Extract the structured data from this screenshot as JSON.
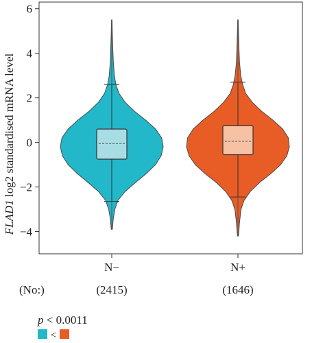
{
  "chart_data": {
    "type": "violin",
    "ylabel_italic": "FLAD1",
    "ylabel_rest": " log2 standardised mRNA level",
    "ylim": [
      -5,
      6.3
    ],
    "yticks": [
      -4,
      -2,
      0,
      2,
      4,
      6
    ],
    "ytick_labels": [
      "−4",
      "−2",
      "0",
      "2",
      "4",
      "6"
    ],
    "count_prefix": "(No:)",
    "groups": [
      {
        "label": "N−",
        "count_label": "(2415)",
        "color": "#22B7C9",
        "box_color": "#A9DDE6",
        "min": -3.9,
        "whisker_low": -2.65,
        "q1": -0.75,
        "median": -0.05,
        "q3": 0.6,
        "whisker_high": 2.6,
        "max": 5.5,
        "density": [
          [
            -3.9,
            0.01
          ],
          [
            -3.4,
            0.03
          ],
          [
            -3.0,
            0.06
          ],
          [
            -2.6,
            0.12
          ],
          [
            -2.2,
            0.26
          ],
          [
            -1.8,
            0.46
          ],
          [
            -1.4,
            0.67
          ],
          [
            -1.0,
            0.85
          ],
          [
            -0.6,
            0.96
          ],
          [
            -0.2,
            1.0
          ],
          [
            0.2,
            0.97
          ],
          [
            0.6,
            0.85
          ],
          [
            1.0,
            0.66
          ],
          [
            1.4,
            0.44
          ],
          [
            1.8,
            0.26
          ],
          [
            2.2,
            0.14
          ],
          [
            2.6,
            0.08
          ],
          [
            3.0,
            0.05
          ],
          [
            3.6,
            0.03
          ],
          [
            4.2,
            0.02
          ],
          [
            4.8,
            0.012
          ],
          [
            5.5,
            0.005
          ]
        ]
      },
      {
        "label": "N+",
        "count_label": "(1646)",
        "color": "#E85D26",
        "box_color": "#F7C1A4",
        "min": -4.2,
        "whisker_low": -2.45,
        "q1": -0.55,
        "median": 0.05,
        "q3": 0.75,
        "whisker_high": 2.7,
        "max": 5.5,
        "density": [
          [
            -4.2,
            0.01
          ],
          [
            -3.6,
            0.03
          ],
          [
            -3.0,
            0.06
          ],
          [
            -2.6,
            0.12
          ],
          [
            -2.2,
            0.24
          ],
          [
            -1.8,
            0.42
          ],
          [
            -1.4,
            0.64
          ],
          [
            -1.0,
            0.83
          ],
          [
            -0.6,
            0.95
          ],
          [
            -0.2,
            1.0
          ],
          [
            0.2,
            0.98
          ],
          [
            0.6,
            0.87
          ],
          [
            1.0,
            0.68
          ],
          [
            1.4,
            0.46
          ],
          [
            1.8,
            0.28
          ],
          [
            2.2,
            0.15
          ],
          [
            2.6,
            0.09
          ],
          [
            3.0,
            0.055
          ],
          [
            3.6,
            0.03
          ],
          [
            4.2,
            0.02
          ],
          [
            4.8,
            0.012
          ],
          [
            5.5,
            0.005
          ]
        ]
      }
    ],
    "pvalue_label_italic": "p",
    "pvalue_label_rest": " < 0.0011",
    "comparison_symbol": "<"
  }
}
